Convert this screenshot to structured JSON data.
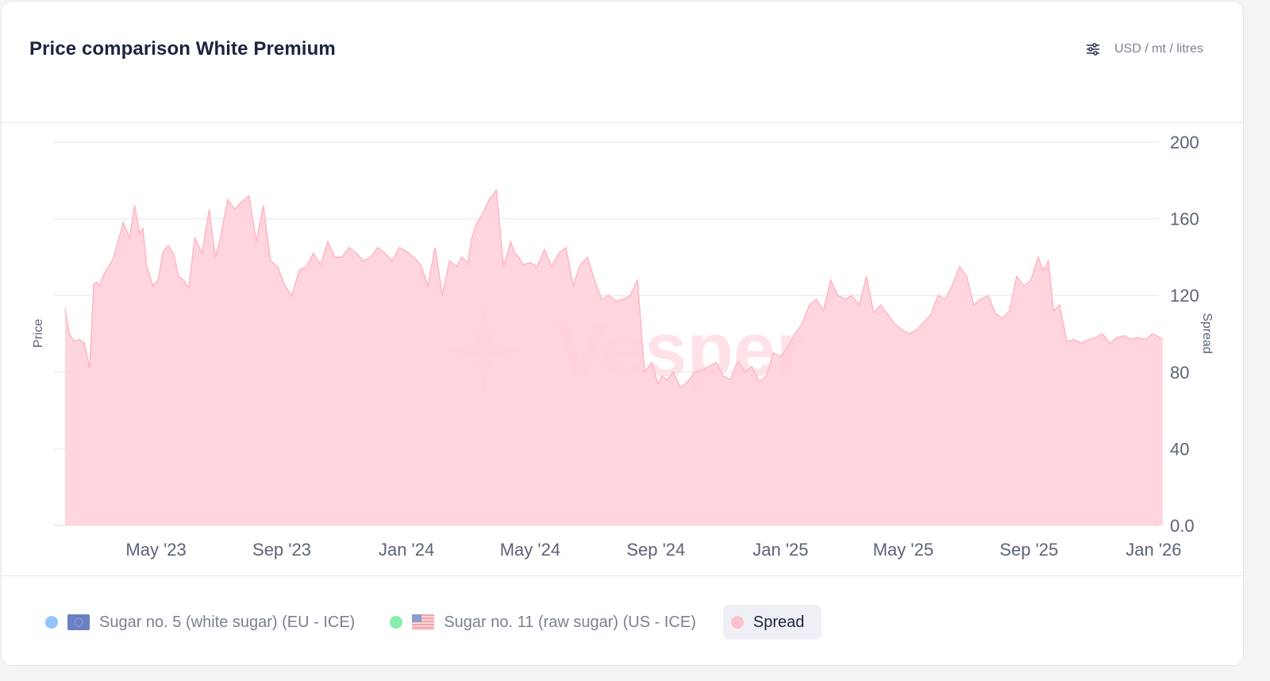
{
  "header": {
    "title": "Price comparison White Premium",
    "units_label": "USD / mt / litres",
    "units_icon": "sliders-icon"
  },
  "watermark": "Vesper",
  "legend": {
    "items": [
      {
        "label": "Sugar no. 5 (white sugar) (EU - ICE)",
        "color": "#93c5fd",
        "flag": "eu-flag-icon",
        "active": false
      },
      {
        "label": "Sugar no. 11 (raw sugar) (US - ICE)",
        "color": "#86efac",
        "flag": "us-flag-icon",
        "active": false
      },
      {
        "label": "Spread",
        "color": "#ffc1cb",
        "active": true
      }
    ]
  },
  "colors": {
    "spread_fill": "#ffd0da",
    "spread_line": "#ffb6c4",
    "grid": "#e3e6f0",
    "axis_text": "#5b6478"
  },
  "chart_data": {
    "type": "area",
    "title": "Price comparison White Premium",
    "ylabel_left": "Price",
    "ylabel_right": "Spread",
    "ylim": [
      0,
      200
    ],
    "yticks": [
      "0.0",
      "40",
      "80",
      "120",
      "160",
      "200"
    ],
    "ytick_values": [
      0,
      40,
      80,
      120,
      160,
      200
    ],
    "xlim": [
      "2023-02-01",
      "2026-01-10"
    ],
    "xtick_labels": [
      "May '23",
      "Sep '23",
      "Jan '24",
      "May '24",
      "Sep '24",
      "Jan '25",
      "May '25",
      "Sep '25",
      "Jan '26"
    ],
    "xtick_dates": [
      "2023-05-01",
      "2023-09-01",
      "2024-01-01",
      "2024-05-01",
      "2024-09-01",
      "2025-01-01",
      "2025-05-01",
      "2025-09-01",
      "2026-01-01"
    ],
    "series": [
      {
        "name": "Spread",
        "x": [
          "2023-02-01",
          "2023-02-05",
          "2023-02-10",
          "2023-02-15",
          "2023-02-20",
          "2023-02-25",
          "2023-03-01",
          "2023-03-04",
          "2023-03-07",
          "2023-03-10",
          "2023-03-20",
          "2023-03-30",
          "2023-04-05",
          "2023-04-10",
          "2023-04-15",
          "2023-04-18",
          "2023-04-22",
          "2023-04-28",
          "2023-05-03",
          "2023-05-08",
          "2023-05-13",
          "2023-05-18",
          "2023-05-23",
          "2023-05-28",
          "2023-06-02",
          "2023-06-08",
          "2023-06-15",
          "2023-06-22",
          "2023-06-28",
          "2023-07-03",
          "2023-07-10",
          "2023-07-17",
          "2023-07-24",
          "2023-07-31",
          "2023-08-07",
          "2023-08-14",
          "2023-08-21",
          "2023-08-28",
          "2023-09-04",
          "2023-09-11",
          "2023-09-18",
          "2023-09-25",
          "2023-10-02",
          "2023-10-09",
          "2023-10-16",
          "2023-10-23",
          "2023-10-30",
          "2023-11-06",
          "2023-11-13",
          "2023-11-20",
          "2023-11-27",
          "2023-12-04",
          "2023-12-11",
          "2023-12-18",
          "2023-12-25",
          "2024-01-01",
          "2024-01-08",
          "2024-01-15",
          "2024-01-22",
          "2024-01-29",
          "2024-02-05",
          "2024-02-12",
          "2024-02-19",
          "2024-02-24",
          "2024-03-01",
          "2024-03-05",
          "2024-03-10",
          "2024-03-15",
          "2024-03-22",
          "2024-03-29",
          "2024-04-05",
          "2024-04-12",
          "2024-04-16",
          "2024-04-20",
          "2024-04-24",
          "2024-05-01",
          "2024-05-08",
          "2024-05-15",
          "2024-05-22",
          "2024-05-29",
          "2024-06-05",
          "2024-06-12",
          "2024-06-19",
          "2024-06-26",
          "2024-07-03",
          "2024-07-10",
          "2024-07-17",
          "2024-07-24",
          "2024-07-31",
          "2024-08-07",
          "2024-08-14",
          "2024-08-21",
          "2024-08-28",
          "2024-09-03",
          "2024-09-07",
          "2024-09-12",
          "2024-09-18",
          "2024-09-25",
          "2024-10-02",
          "2024-10-09",
          "2024-10-16",
          "2024-10-23",
          "2024-10-30",
          "2024-11-06",
          "2024-11-13",
          "2024-11-20",
          "2024-11-27",
          "2024-12-04",
          "2024-12-11",
          "2024-12-18",
          "2024-12-25",
          "2025-01-01",
          "2025-01-08",
          "2025-01-15",
          "2025-01-22",
          "2025-01-29",
          "2025-02-05",
          "2025-02-12",
          "2025-02-19",
          "2025-02-26",
          "2025-03-05",
          "2025-03-12",
          "2025-03-19",
          "2025-03-26",
          "2025-04-02",
          "2025-04-09",
          "2025-04-16",
          "2025-04-23",
          "2025-04-30",
          "2025-05-07",
          "2025-05-14",
          "2025-05-21",
          "2025-05-28",
          "2025-06-04",
          "2025-06-11",
          "2025-06-18",
          "2025-06-25",
          "2025-07-02",
          "2025-07-09",
          "2025-07-16",
          "2025-07-23",
          "2025-07-30",
          "2025-08-06",
          "2025-08-13",
          "2025-08-20",
          "2025-08-27",
          "2025-09-03",
          "2025-09-10",
          "2025-09-15",
          "2025-09-20",
          "2025-09-25",
          "2025-10-01",
          "2025-10-08",
          "2025-10-15",
          "2025-10-22",
          "2025-10-29",
          "2025-11-05",
          "2025-11-12",
          "2025-11-19",
          "2025-11-26",
          "2025-12-03",
          "2025-12-10",
          "2025-12-17",
          "2025-12-24",
          "2025-12-31",
          "2026-01-07",
          "2026-01-10"
        ],
        "values": [
          113,
          100,
          96,
          97,
          95,
          82,
          126,
          127,
          125,
          130,
          139,
          158,
          150,
          167,
          152,
          155,
          135,
          125,
          128,
          143,
          146,
          142,
          130,
          128,
          124,
          150,
          142,
          165,
          140,
          150,
          170,
          165,
          169,
          172,
          148,
          167,
          138,
          135,
          125,
          120,
          133,
          135,
          142,
          136,
          148,
          140,
          140,
          145,
          142,
          138,
          140,
          145,
          142,
          138,
          145,
          143,
          140,
          136,
          125,
          145,
          120,
          138,
          135,
          140,
          137,
          150,
          158,
          162,
          170,
          175,
          135,
          148,
          142,
          140,
          136,
          137,
          135,
          144,
          135,
          142,
          145,
          125,
          136,
          140,
          128,
          118,
          120,
          117,
          118,
          120,
          128,
          80,
          85,
          74,
          78,
          76,
          80,
          72,
          75,
          80,
          81,
          83,
          85,
          78,
          76,
          86,
          80,
          83,
          75,
          78,
          90,
          88,
          93,
          100,
          105,
          115,
          118,
          112,
          128,
          120,
          118,
          120,
          115,
          130,
          111,
          115,
          110,
          105,
          102,
          100,
          102,
          106,
          110,
          120,
          118,
          125,
          135,
          130,
          115,
          118,
          120,
          111,
          108,
          112,
          130,
          125,
          128,
          140,
          133,
          138,
          112,
          115,
          96,
          97,
          95,
          97,
          98,
          100,
          95,
          98,
          99,
          97,
          98,
          97,
          100,
          98,
          97
        ]
      }
    ],
    "legend": [
      "Sugar no. 5 (white sugar) (EU - ICE)",
      "Sugar no. 11 (raw sugar) (US - ICE)",
      "Spread"
    ],
    "legend_position": "bottom-left",
    "grid": true
  }
}
